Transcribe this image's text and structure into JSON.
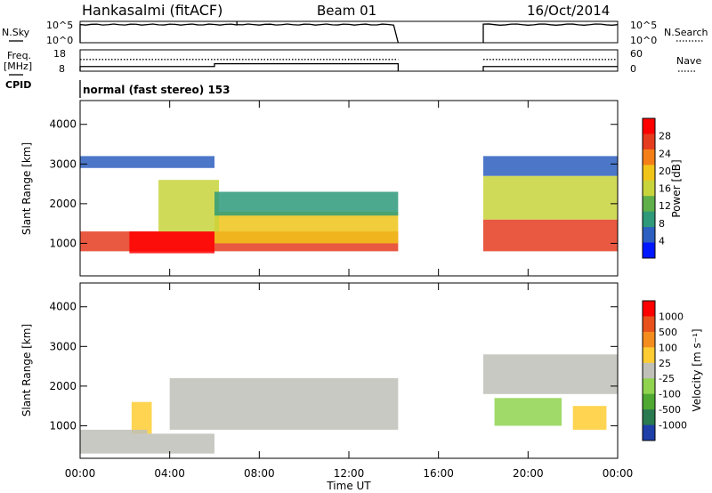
{
  "header": {
    "station": "Hankasalmi (fitACF)",
    "beam": "Beam 01",
    "date": "16/Oct/2014"
  },
  "nsky_panel": {
    "left_label": "N.Sky",
    "left_ticks": [
      "10^5",
      "10^0"
    ],
    "right_ticks": [
      "10^5",
      "10^0"
    ],
    "right_label": "N.Search",
    "right_label_line": "dotted"
  },
  "freq_panel": {
    "left_label_1": "Freq.",
    "left_label_2": "[MHz]",
    "left_ticks": [
      "18",
      "8"
    ],
    "right_ticks": [
      "60",
      "0"
    ],
    "right_label": "Nave",
    "right_label_line": "dotted"
  },
  "cpid": {
    "label": "CPID",
    "text": "normal (fast stereo) 153"
  },
  "x_axis": {
    "title": "Time UT",
    "range_hours": [
      0,
      24
    ],
    "ticks": [
      "00:00",
      "04:00",
      "08:00",
      "12:00",
      "16:00",
      "20:00",
      "00:00"
    ],
    "data_gap_hours": [
      14.2,
      18.0
    ]
  },
  "chart_data": [
    {
      "type": "heatmap",
      "title": "Power",
      "ylabel": "Slant Range [km]",
      "ylim": [
        180,
        4600
      ],
      "yticks": [
        "1000",
        "2000",
        "3000",
        "4000"
      ],
      "colorbar": {
        "label": "Power [dB]",
        "ticks": [
          "28",
          "24",
          "20",
          "16",
          "12",
          "8",
          "4"
        ],
        "range": [
          0,
          30
        ],
        "colors": [
          "#0018ff",
          "#2d5fc0",
          "#2e9a7a",
          "#5fb04b",
          "#c8d43c",
          "#f0c419",
          "#f57f17",
          "#e53b1f",
          "#ff0000"
        ]
      },
      "regions": [
        {
          "time_start": 0.0,
          "time_end": 14.2,
          "range_start": 800,
          "range_end": 1300,
          "level_db": 26
        },
        {
          "time_start": 2.2,
          "time_end": 6.0,
          "range_start": 750,
          "range_end": 1300,
          "level_db": 28
        },
        {
          "time_start": 6.0,
          "time_end": 14.2,
          "range_start": 1000,
          "range_end": 1800,
          "level_db": 17
        },
        {
          "time_start": 3.5,
          "time_end": 6.2,
          "range_start": 1300,
          "range_end": 2600,
          "level_db": 15
        },
        {
          "time_start": 6.0,
          "time_end": 14.2,
          "range_start": 1700,
          "range_end": 2300,
          "level_db": 9
        },
        {
          "time_start": 18.0,
          "time_end": 24.0,
          "range_start": 800,
          "range_end": 1600,
          "level_db": 24
        },
        {
          "time_start": 18.0,
          "time_end": 24.0,
          "range_start": 1600,
          "range_end": 2700,
          "level_db": 14
        },
        {
          "time_start": 18.0,
          "time_end": 24.0,
          "range_start": 2700,
          "range_end": 3200,
          "level_db": 6
        },
        {
          "time_start": 0.0,
          "time_end": 6.0,
          "range_start": 2900,
          "range_end": 3200,
          "level_db": 5
        }
      ]
    },
    {
      "type": "heatmap",
      "title": "Velocity",
      "ylabel": "Slant Range [km]",
      "ylim": [
        180,
        4600
      ],
      "yticks": [
        "1000",
        "2000",
        "3000",
        "4000"
      ],
      "colorbar": {
        "label": "Velocity [m s⁻¹]",
        "ticks": [
          "1000",
          "500",
          "100",
          "25",
          "-25",
          "-100",
          "-500",
          "-1000"
        ],
        "range": [
          -1200,
          1200
        ],
        "colors": [
          "#1e3fa8",
          "#2a7a4f",
          "#4ea832",
          "#8fd34f",
          "#c0c0b8",
          "#ffcc33",
          "#f58c1e",
          "#e8501c",
          "#ff0000"
        ]
      },
      "regions": [
        {
          "time_start": 4.0,
          "time_end": 14.2,
          "range_start": 900,
          "range_end": 2200,
          "velocity_ms": 0
        },
        {
          "time_start": 2.3,
          "time_end": 3.2,
          "range_start": 800,
          "range_end": 1600,
          "velocity_ms": 200
        },
        {
          "time_start": 0.0,
          "time_end": 3.0,
          "range_start": 300,
          "range_end": 900,
          "velocity_ms": 60
        },
        {
          "time_start": 3.0,
          "time_end": 6.0,
          "range_start": 300,
          "range_end": 800,
          "velocity_ms": -80
        },
        {
          "time_start": 18.5,
          "time_end": 21.5,
          "range_start": 1000,
          "range_end": 1700,
          "velocity_ms": -400
        },
        {
          "time_start": 22.0,
          "time_end": 23.5,
          "range_start": 900,
          "range_end": 1500,
          "velocity_ms": 300
        },
        {
          "time_start": 18.0,
          "time_end": 24.0,
          "range_start": 1800,
          "range_end": 2800,
          "velocity_ms": 0
        }
      ]
    }
  ],
  "series_top": {
    "nsky_level": 0.85,
    "nsky_spike_hour": 7.0,
    "freq_line_mhz": 10.2,
    "freq_step_hour": 6.0,
    "freq_after_step_mhz": 11.5,
    "nave_level": 0.55
  }
}
